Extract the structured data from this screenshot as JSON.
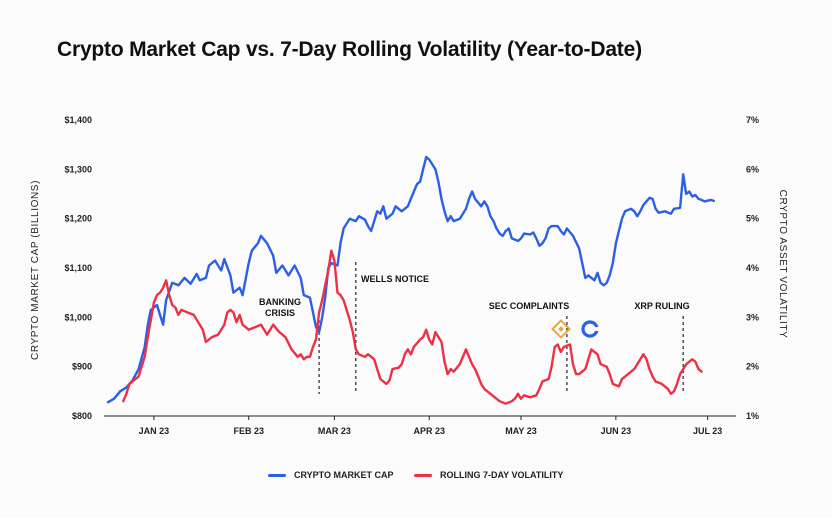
{
  "chart_data": {
    "type": "line",
    "title": "Crypto Market Cap vs. 7-Day Rolling Volatility (Year-to-Date)",
    "y_left_label": "CRYPTO MARKET CAP (BILLIONS)",
    "y_right_label": "CRYPTO ASSET VOLATILITY",
    "y_left_ticks": [
      "$800",
      "$900",
      "$1,000",
      "$1,100",
      "$1,200",
      "$1,300",
      "$1,400"
    ],
    "y_right_ticks": [
      "1%",
      "2%",
      "3%",
      "4%",
      "5%",
      "6%",
      "7%"
    ],
    "y_left_range": [
      800,
      1400
    ],
    "y_right_range": [
      1,
      7
    ],
    "x_ticks": [
      "JAN 23",
      "FEB 23",
      "MAR 23",
      "APR 23",
      "MAY 23",
      "JUN 23",
      "JUL 23"
    ],
    "x_range_days": [
      1,
      203
    ],
    "colors": {
      "market_cap": "#2c5fe8",
      "volatility": "#ee3046"
    },
    "series": [
      {
        "name": "CRYPTO MARKET CAP",
        "axis": "left",
        "points": [
          [
            1,
            828
          ],
          [
            3,
            835
          ],
          [
            5,
            850
          ],
          [
            7,
            858
          ],
          [
            9,
            872
          ],
          [
            11,
            895
          ],
          [
            13,
            940
          ],
          [
            14,
            985
          ],
          [
            15,
            1015
          ],
          [
            17,
            1025
          ],
          [
            18,
            1005
          ],
          [
            19,
            985
          ],
          [
            20,
            1035
          ],
          [
            22,
            1070
          ],
          [
            24,
            1065
          ],
          [
            26,
            1080
          ],
          [
            28,
            1068
          ],
          [
            30,
            1088
          ],
          [
            31,
            1075
          ],
          [
            33,
            1080
          ],
          [
            34,
            1105
          ],
          [
            36,
            1115
          ],
          [
            38,
            1095
          ],
          [
            39,
            1118
          ],
          [
            41,
            1085
          ],
          [
            42,
            1050
          ],
          [
            44,
            1060
          ],
          [
            45,
            1045
          ],
          [
            47,
            1110
          ],
          [
            48,
            1135
          ],
          [
            50,
            1150
          ],
          [
            51,
            1165
          ],
          [
            53,
            1150
          ],
          [
            55,
            1125
          ],
          [
            56,
            1090
          ],
          [
            58,
            1105
          ],
          [
            60,
            1085
          ],
          [
            62,
            1105
          ],
          [
            64,
            1080
          ],
          [
            65,
            1045
          ],
          [
            67,
            1040
          ],
          [
            68,
            1010
          ],
          [
            69,
            980
          ],
          [
            70,
            970
          ],
          [
            71,
            1000
          ],
          [
            72,
            1040
          ],
          [
            73,
            1100
          ],
          [
            74,
            1110
          ],
          [
            76,
            1105
          ],
          [
            77,
            1150
          ],
          [
            78,
            1180
          ],
          [
            80,
            1200
          ],
          [
            82,
            1195
          ],
          [
            83,
            1205
          ],
          [
            85,
            1198
          ],
          [
            86,
            1185
          ],
          [
            87,
            1175
          ],
          [
            88,
            1195
          ],
          [
            89,
            1215
          ],
          [
            90,
            1210
          ],
          [
            91,
            1225
          ],
          [
            92,
            1200
          ],
          [
            94,
            1210
          ],
          [
            95,
            1225
          ],
          [
            97,
            1215
          ],
          [
            99,
            1225
          ],
          [
            101,
            1255
          ],
          [
            102,
            1270
          ],
          [
            103,
            1275
          ],
          [
            104,
            1300
          ],
          [
            105,
            1325
          ],
          [
            106,
            1320
          ],
          [
            107,
            1310
          ],
          [
            108,
            1300
          ],
          [
            109,
            1275
          ],
          [
            110,
            1240
          ],
          [
            111,
            1215
          ],
          [
            112,
            1195
          ],
          [
            113,
            1205
          ],
          [
            114,
            1195
          ],
          [
            116,
            1200
          ],
          [
            118,
            1220
          ],
          [
            119,
            1240
          ],
          [
            120,
            1255
          ],
          [
            121,
            1240
          ],
          [
            123,
            1225
          ],
          [
            124,
            1235
          ],
          [
            125,
            1225
          ],
          [
            126,
            1205
          ],
          [
            127,
            1195
          ],
          [
            128,
            1180
          ],
          [
            129,
            1170
          ],
          [
            130,
            1165
          ],
          [
            131,
            1175
          ],
          [
            132,
            1180
          ],
          [
            133,
            1160
          ],
          [
            135,
            1155
          ],
          [
            136,
            1160
          ],
          [
            137,
            1170
          ],
          [
            139,
            1168
          ],
          [
            140,
            1172
          ],
          [
            141,
            1160
          ],
          [
            142,
            1145
          ],
          [
            143,
            1150
          ],
          [
            144,
            1160
          ],
          [
            145,
            1180
          ],
          [
            146,
            1185
          ],
          [
            148,
            1185
          ],
          [
            149,
            1175
          ],
          [
            150,
            1168
          ],
          [
            151,
            1180
          ],
          [
            153,
            1165
          ],
          [
            155,
            1140
          ],
          [
            157,
            1080
          ],
          [
            158,
            1085
          ],
          [
            160,
            1075
          ],
          [
            161,
            1090
          ],
          [
            162,
            1070
          ],
          [
            163,
            1065
          ],
          [
            164,
            1070
          ],
          [
            165,
            1085
          ],
          [
            166,
            1110
          ],
          [
            167,
            1150
          ],
          [
            168,
            1175
          ],
          [
            169,
            1200
          ],
          [
            170,
            1215
          ],
          [
            172,
            1220
          ],
          [
            173,
            1215
          ],
          [
            174,
            1205
          ],
          [
            175,
            1215
          ],
          [
            176,
            1228
          ],
          [
            177,
            1235
          ],
          [
            178,
            1242
          ],
          [
            179,
            1240
          ],
          [
            180,
            1220
          ],
          [
            181,
            1212
          ],
          [
            183,
            1215
          ],
          [
            185,
            1210
          ],
          [
            186,
            1220
          ],
          [
            188,
            1222
          ],
          [
            189,
            1290
          ],
          [
            190,
            1250
          ],
          [
            191,
            1255
          ],
          [
            192,
            1245
          ],
          [
            193,
            1248
          ],
          [
            194,
            1240
          ],
          [
            195,
            1238
          ],
          [
            196,
            1235
          ],
          [
            198,
            1238
          ],
          [
            199,
            1236
          ]
        ]
      },
      {
        "name": "ROLLING 7-DAY VOLATILITY",
        "axis": "right",
        "points": [
          [
            6,
            1.3
          ],
          [
            7,
            1.45
          ],
          [
            8,
            1.65
          ],
          [
            10,
            1.75
          ],
          [
            11,
            1.8
          ],
          [
            13,
            2.2
          ],
          [
            14,
            2.6
          ],
          [
            16,
            3.3
          ],
          [
            17,
            3.45
          ],
          [
            18,
            3.5
          ],
          [
            19,
            3.6
          ],
          [
            20,
            3.75
          ],
          [
            21,
            3.45
          ],
          [
            22,
            3.25
          ],
          [
            23,
            3.2
          ],
          [
            24,
            3.05
          ],
          [
            25,
            3.15
          ],
          [
            27,
            3.1
          ],
          [
            29,
            3.05
          ],
          [
            31,
            2.85
          ],
          [
            32,
            2.75
          ],
          [
            33,
            2.5
          ],
          [
            35,
            2.6
          ],
          [
            37,
            2.65
          ],
          [
            39,
            2.85
          ],
          [
            40,
            3.1
          ],
          [
            41,
            3.15
          ],
          [
            42,
            3.1
          ],
          [
            43,
            2.9
          ],
          [
            44,
            3.05
          ],
          [
            45,
            2.85
          ],
          [
            47,
            2.75
          ],
          [
            49,
            2.8
          ],
          [
            51,
            2.85
          ],
          [
            53,
            2.65
          ],
          [
            55,
            2.85
          ],
          [
            57,
            2.7
          ],
          [
            59,
            2.6
          ],
          [
            61,
            2.35
          ],
          [
            63,
            2.2
          ],
          [
            64,
            2.25
          ],
          [
            65,
            2.15
          ],
          [
            66,
            2.2
          ],
          [
            67,
            2.2
          ],
          [
            68,
            2.4
          ],
          [
            69,
            2.55
          ],
          [
            70,
            3.1
          ],
          [
            71,
            3.35
          ],
          [
            72,
            3.65
          ],
          [
            73,
            3.95
          ],
          [
            74,
            4.35
          ],
          [
            75,
            4.15
          ],
          [
            76,
            3.5
          ],
          [
            77,
            3.45
          ],
          [
            78,
            3.35
          ],
          [
            79,
            3.15
          ],
          [
            80,
            2.95
          ],
          [
            81,
            2.7
          ],
          [
            82,
            2.35
          ],
          [
            83,
            2.25
          ],
          [
            85,
            2.2
          ],
          [
            86,
            2.25
          ],
          [
            88,
            2.15
          ],
          [
            90,
            1.75
          ],
          [
            92,
            1.65
          ],
          [
            93,
            1.72
          ],
          [
            94,
            1.95
          ],
          [
            96,
            1.98
          ],
          [
            97,
            2.05
          ],
          [
            98,
            2.25
          ],
          [
            99,
            2.35
          ],
          [
            100,
            2.25
          ],
          [
            101,
            2.4
          ],
          [
            103,
            2.55
          ],
          [
            104,
            2.6
          ],
          [
            105,
            2.75
          ],
          [
            106,
            2.55
          ],
          [
            107,
            2.45
          ],
          [
            108,
            2.7
          ],
          [
            110,
            2.5
          ],
          [
            111,
            2.1
          ],
          [
            112,
            1.85
          ],
          [
            113,
            1.95
          ],
          [
            114,
            1.9
          ],
          [
            116,
            2.05
          ],
          [
            118,
            2.35
          ],
          [
            119,
            2.2
          ],
          [
            120,
            2.05
          ],
          [
            121,
            1.95
          ],
          [
            122,
            1.8
          ],
          [
            123,
            1.65
          ],
          [
            124,
            1.55
          ],
          [
            126,
            1.45
          ],
          [
            128,
            1.35
          ],
          [
            129,
            1.3
          ],
          [
            131,
            1.25
          ],
          [
            133,
            1.3
          ],
          [
            134,
            1.35
          ],
          [
            135,
            1.45
          ],
          [
            136,
            1.35
          ],
          [
            137,
            1.42
          ],
          [
            139,
            1.38
          ],
          [
            141,
            1.42
          ],
          [
            142,
            1.55
          ],
          [
            143,
            1.7
          ],
          [
            145,
            1.75
          ],
          [
            146,
            2.0
          ],
          [
            147,
            2.4
          ],
          [
            148,
            2.45
          ],
          [
            149,
            2.3
          ],
          [
            150,
            2.4
          ],
          [
            152,
            2.45
          ],
          [
            153,
            2.05
          ],
          [
            154,
            1.85
          ],
          [
            155,
            1.85
          ],
          [
            157,
            1.95
          ],
          [
            159,
            2.35
          ],
          [
            161,
            2.25
          ],
          [
            162,
            2.05
          ],
          [
            164,
            2.0
          ],
          [
            165,
            1.85
          ],
          [
            166,
            1.65
          ],
          [
            168,
            1.6
          ],
          [
            169,
            1.75
          ],
          [
            171,
            1.85
          ],
          [
            173,
            1.95
          ],
          [
            174,
            2.05
          ],
          [
            176,
            2.25
          ],
          [
            177,
            2.15
          ],
          [
            178,
            1.95
          ],
          [
            179,
            1.8
          ],
          [
            180,
            1.7
          ],
          [
            182,
            1.65
          ],
          [
            184,
            1.55
          ],
          [
            185,
            1.45
          ],
          [
            186,
            1.5
          ],
          [
            187,
            1.65
          ],
          [
            188,
            1.85
          ],
          [
            190,
            2.05
          ],
          [
            192,
            2.15
          ],
          [
            193,
            2.1
          ],
          [
            194,
            1.95
          ],
          [
            195,
            1.9
          ]
        ]
      }
    ],
    "annotations": [
      {
        "key": "banking",
        "day": 70,
        "lines": [
          "BANKING",
          "CRISIS"
        ]
      },
      {
        "key": "wells",
        "day": 82,
        "lines": [
          "WELLS NOTICE"
        ]
      },
      {
        "key": "sec",
        "day": 151,
        "lines": [
          "SEC COMPLAINTS"
        ]
      },
      {
        "key": "xrp",
        "day": 189,
        "lines": [
          "XRP RULING"
        ]
      }
    ],
    "grid": false,
    "legend_position": "bottom-center"
  }
}
